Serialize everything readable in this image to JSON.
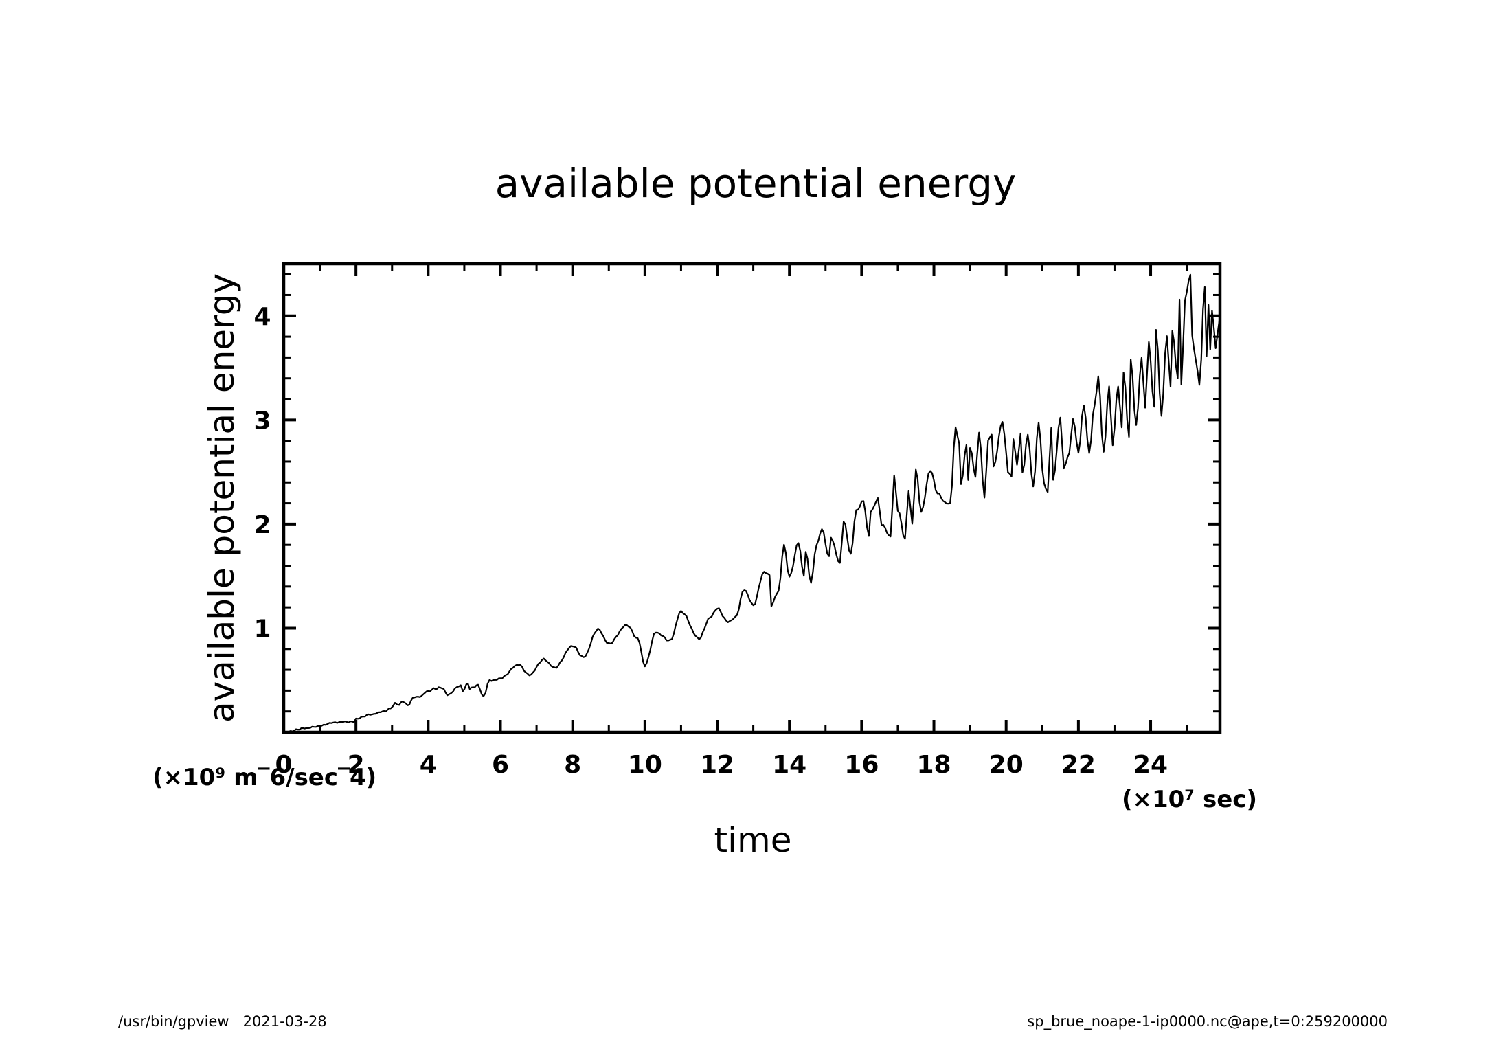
{
  "chart_data": {
    "type": "line",
    "title": "available potential energy",
    "xlabel": "time",
    "ylabel": "available potential energy",
    "x_unit_label": "(×10⁷ sec)",
    "y_unit_label": "(×10⁹ m‾6/sec‾4)",
    "xlim": [
      0,
      25.92
    ],
    "ylim": [
      0,
      4.5
    ],
    "x_major_ticks": [
      0,
      2,
      4,
      6,
      8,
      10,
      12,
      14,
      16,
      18,
      20,
      22,
      24
    ],
    "x_tick_labels": [
      "0",
      "2",
      "4",
      "6",
      "8",
      "10",
      "12",
      "14",
      "16",
      "18",
      "20",
      "22",
      "24"
    ],
    "x_minor_step": 1,
    "y_major_ticks": [
      1,
      2,
      3,
      4
    ],
    "y_tick_labels": [
      "1",
      "2",
      "3",
      "4"
    ],
    "y_minor_step": 0.2,
    "grid": false,
    "legend": "none",
    "series": [
      {
        "name": "available potential energy",
        "color": "#000000",
        "x": [
          0,
          0.63,
          1.0,
          1.32,
          1.64,
          1.94,
          2.0,
          2.4,
          2.78,
          2.96,
          3.08,
          3.2,
          3.28,
          3.43,
          3.62,
          3.77,
          3.96,
          4.2,
          4.38,
          4.53,
          4.9,
          4.96,
          5.1,
          5.15,
          5.38,
          5.53,
          5.7,
          5.85,
          6.0,
          6.5,
          6.8,
          7.2,
          7.5,
          8.0,
          8.3,
          8.7,
          9.0,
          9.5,
          9.8,
          10.0,
          10.3,
          10.7,
          11.0,
          11.5,
          11.8,
          12.0,
          12.3,
          12.5,
          12.75,
          13.0,
          13.3,
          13.45,
          13.5,
          13.7,
          13.85,
          14.0,
          14.25,
          14.4,
          14.45,
          14.6,
          14.75,
          14.9,
          15.1,
          15.15,
          15.4,
          15.5,
          15.7,
          15.85,
          16.05,
          16.2,
          16.25,
          16.45,
          16.55,
          16.8,
          16.9,
          17.0,
          17.2,
          17.3,
          17.4,
          17.5,
          17.65,
          17.9,
          18.1,
          18.3,
          18.45,
          18.6,
          18.7,
          18.75,
          18.9,
          18.95,
          19.0,
          19.15,
          19.25,
          19.4,
          19.5,
          19.6,
          19.65,
          19.9,
          19.95,
          20.05,
          20.15,
          20.2,
          20.3,
          20.4,
          20.45,
          20.6,
          20.75,
          20.9,
          21.05,
          21.15,
          21.25,
          21.3,
          21.5,
          21.6,
          21.75,
          21.85,
          22.0,
          22.15,
          22.3,
          22.45,
          22.55,
          22.7,
          22.85,
          22.95,
          23.1,
          23.2,
          23.25,
          23.4,
          23.45,
          23.6,
          23.75,
          23.85,
          23.95,
          24.1,
          24.15,
          24.3,
          24.45,
          24.55,
          24.6,
          24.75,
          24.8,
          24.85,
          24.95,
          25.1,
          25.15,
          25.25,
          25.35,
          25.5,
          25.55,
          25.6,
          25.65,
          25.7,
          25.8,
          25.92
        ],
        "y": [
          0.0,
          0.04,
          0.06,
          0.09,
          0.1,
          0.1,
          0.13,
          0.17,
          0.2,
          0.23,
          0.28,
          0.26,
          0.3,
          0.26,
          0.34,
          0.34,
          0.39,
          0.42,
          0.43,
          0.36,
          0.45,
          0.4,
          0.47,
          0.42,
          0.45,
          0.34,
          0.5,
          0.5,
          0.52,
          0.65,
          0.55,
          0.7,
          0.62,
          0.83,
          0.72,
          0.99,
          0.85,
          1.03,
          0.9,
          0.64,
          0.96,
          0.88,
          1.16,
          0.9,
          1.1,
          1.19,
          1.06,
          1.1,
          1.37,
          1.22,
          1.54,
          1.51,
          1.22,
          1.36,
          1.8,
          1.49,
          1.82,
          1.51,
          1.73,
          1.44,
          1.8,
          1.95,
          1.68,
          1.87,
          1.62,
          2.03,
          1.71,
          2.13,
          2.22,
          1.88,
          2.12,
          2.24,
          2.0,
          1.88,
          2.46,
          2.14,
          1.86,
          2.32,
          2.0,
          2.52,
          2.12,
          2.52,
          2.3,
          2.21,
          2.19,
          2.92,
          2.78,
          2.38,
          2.75,
          2.43,
          2.74,
          2.46,
          2.88,
          2.26,
          2.79,
          2.87,
          2.55,
          2.99,
          2.85,
          2.51,
          2.45,
          2.82,
          2.57,
          2.86,
          2.49,
          2.85,
          2.36,
          2.97,
          2.38,
          2.31,
          2.93,
          2.42,
          3.01,
          2.54,
          2.68,
          3.02,
          2.69,
          3.14,
          2.69,
          3.15,
          3.41,
          2.69,
          3.31,
          2.77,
          3.33,
          2.93,
          3.46,
          2.85,
          3.57,
          2.95,
          3.59,
          3.13,
          3.74,
          3.12,
          3.87,
          3.05,
          3.82,
          3.31,
          3.86,
          3.41,
          4.15,
          3.33,
          4.15,
          4.4,
          3.81,
          3.57,
          3.35,
          4.28,
          3.62,
          4.1,
          3.68,
          4.05,
          3.7,
          4.0
        ]
      }
    ]
  },
  "footer": {
    "left": "/usr/bin/gpview   2021-03-28",
    "right": "sp_brue_noape-1-ip0000.nc@ape,t=0:259200000"
  }
}
